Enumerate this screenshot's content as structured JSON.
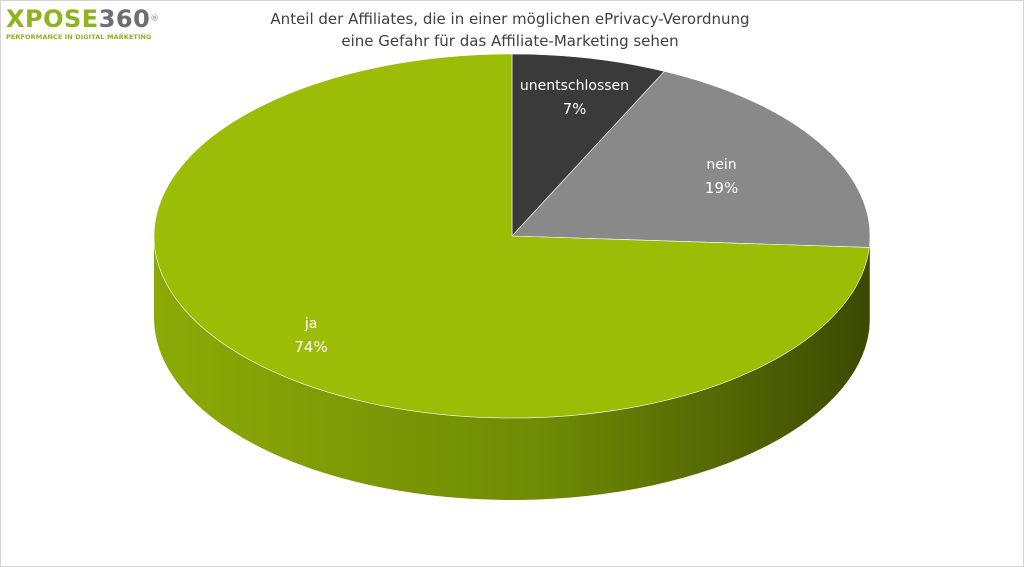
{
  "logo": {
    "word": "XPOSE",
    "number": "360",
    "reg_mark": "®",
    "tagline": "PERFORMANCE IN DIGITAL MARKETING"
  },
  "chart_data": {
    "type": "pie",
    "title_lines": [
      "Anteil der Affiliates, die in einer möglichen ePrivacy-Verordnung",
      "eine Gefahr für das Affiliate-Marketing sehen"
    ],
    "three_d": true,
    "start": "top",
    "direction": "clockwise",
    "slices": [
      {
        "label": "unentschlossen",
        "value": 7,
        "value_label": "7%",
        "color": "#3a3a3a",
        "side_color": "#262626",
        "text_color": "#ffffff"
      },
      {
        "label": "nein",
        "value": 19,
        "value_label": "19%",
        "color": "#898989",
        "side_color": "#5e5e5e",
        "text_color": "#ffffff"
      },
      {
        "label": "ja",
        "value": 74,
        "value_label": "74%",
        "color": "#9bbd05",
        "side_color": "#7a9804",
        "text_color": "#ffffff"
      }
    ]
  }
}
